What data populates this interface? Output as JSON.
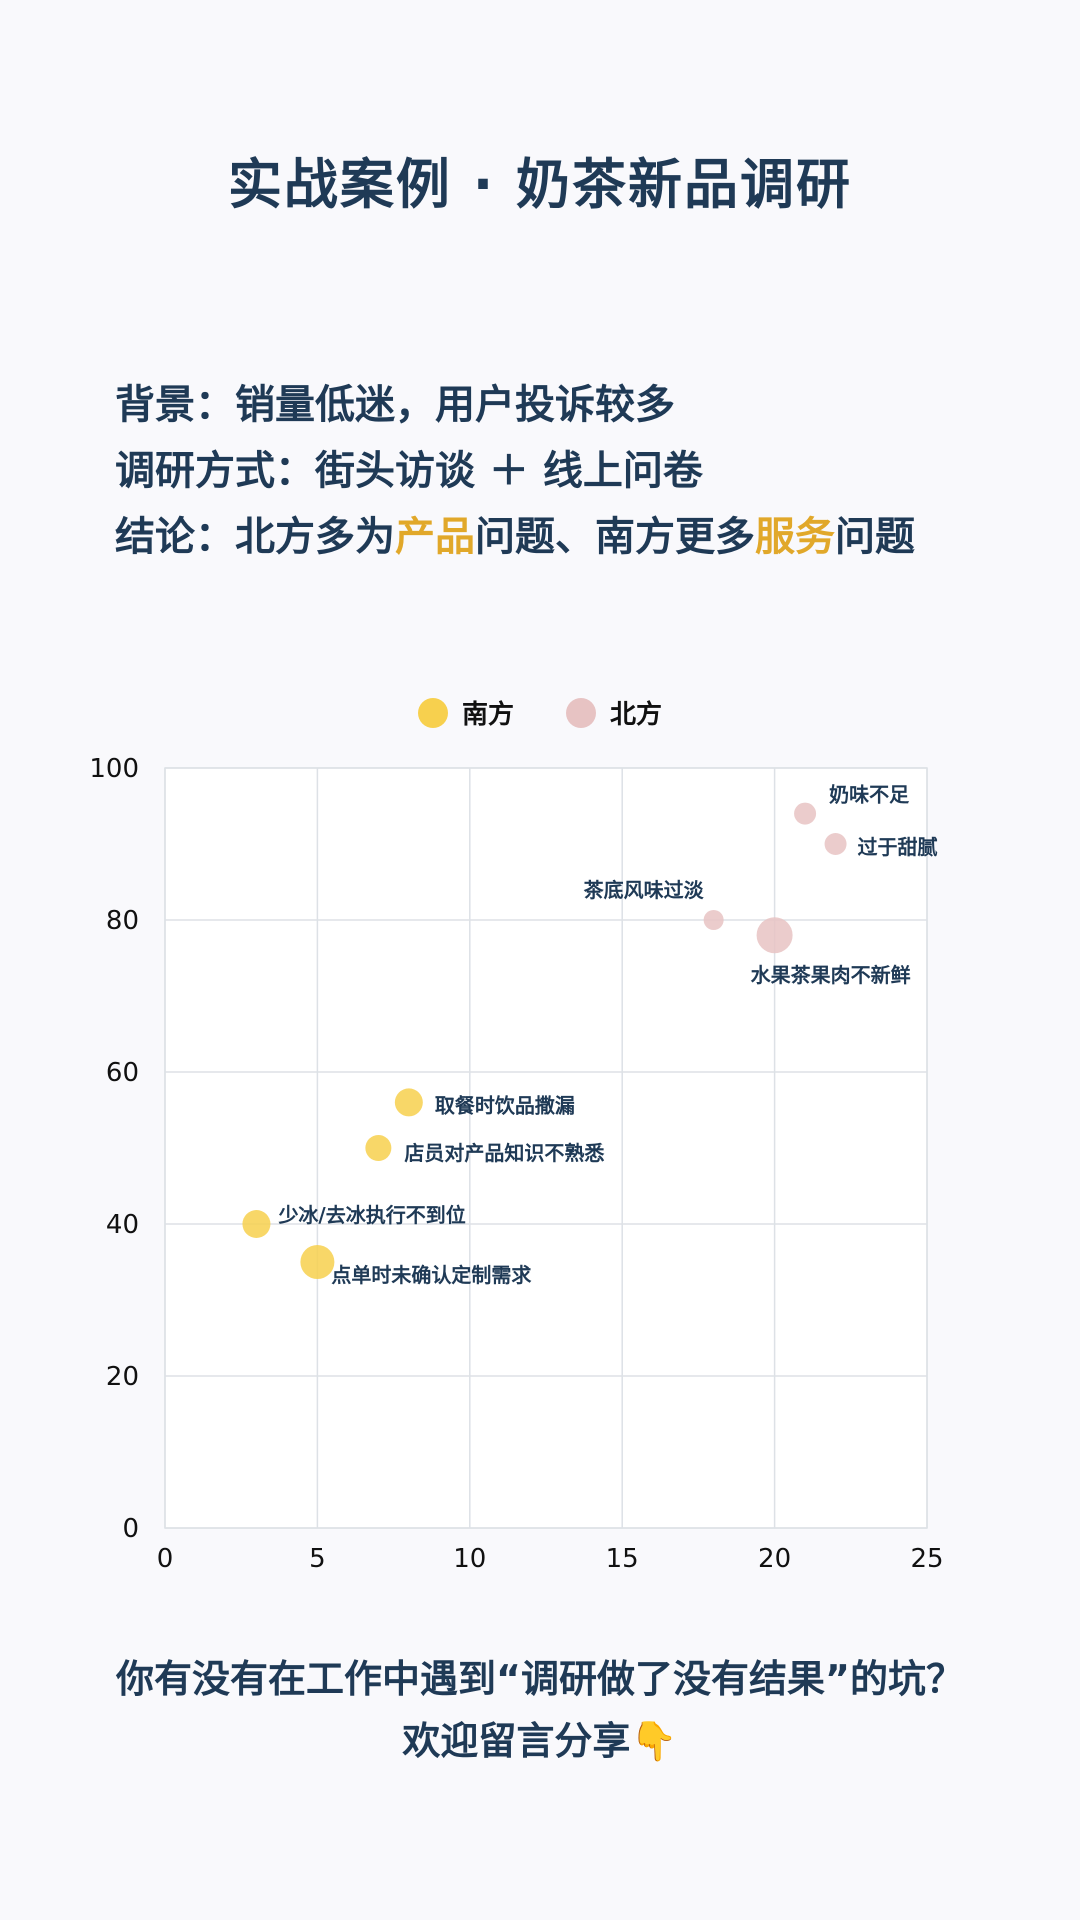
{
  "header": {
    "title": "实战案例 · 奶茶新品调研"
  },
  "background": {
    "line1": "背景：销量低迷，用户投诉较多",
    "line2": "调研方式：街头访谈 ＋ 线上问卷",
    "line3_prefix": "结论：北方多为",
    "line3_hl1": "产品",
    "line3_mid": "问题、南方更多",
    "line3_hl2": "服务",
    "line3_suffix": "问题"
  },
  "colors": {
    "south": "#f7d04e",
    "north": "#e7c3c3",
    "highlight": "#e1a82a",
    "text": "#1f3a56"
  },
  "chart_data": {
    "type": "scatter",
    "xlim": [
      0,
      25
    ],
    "ylim": [
      0,
      100
    ],
    "xticks": [
      0,
      5,
      10,
      15,
      20,
      25
    ],
    "yticks": [
      0,
      20,
      40,
      60,
      80,
      100
    ],
    "grid": true,
    "legend_position": "top-center",
    "series": [
      {
        "name": "南方",
        "color": "#f7d04e",
        "points": [
          {
            "x": 8,
            "y": 56,
            "label": "取餐时饮品撒漏",
            "size": 14
          },
          {
            "x": 7,
            "y": 50,
            "label": "店员对产品知识不熟悉",
            "size": 13
          },
          {
            "x": 3,
            "y": 40,
            "label": "少冰/去冰执行不到位",
            "size": 14
          },
          {
            "x": 5,
            "y": 35,
            "label": "点单时未确认定制需求",
            "size": 17
          }
        ]
      },
      {
        "name": "北方",
        "color": "#e7c3c3",
        "points": [
          {
            "x": 21,
            "y": 94,
            "label": "奶味不足",
            "size": 11
          },
          {
            "x": 22,
            "y": 90,
            "label": "过于甜腻",
            "size": 11
          },
          {
            "x": 18,
            "y": 80,
            "label": "茶底风味过淡",
            "size": 10
          },
          {
            "x": 20,
            "y": 78,
            "label": "水果茶果肉不新鲜",
            "size": 18
          }
        ]
      }
    ]
  },
  "footer": {
    "line1": "你有没有在工作中遇到“调研做了没有结果”的坑？",
    "line2": "欢迎留言分享👇"
  }
}
